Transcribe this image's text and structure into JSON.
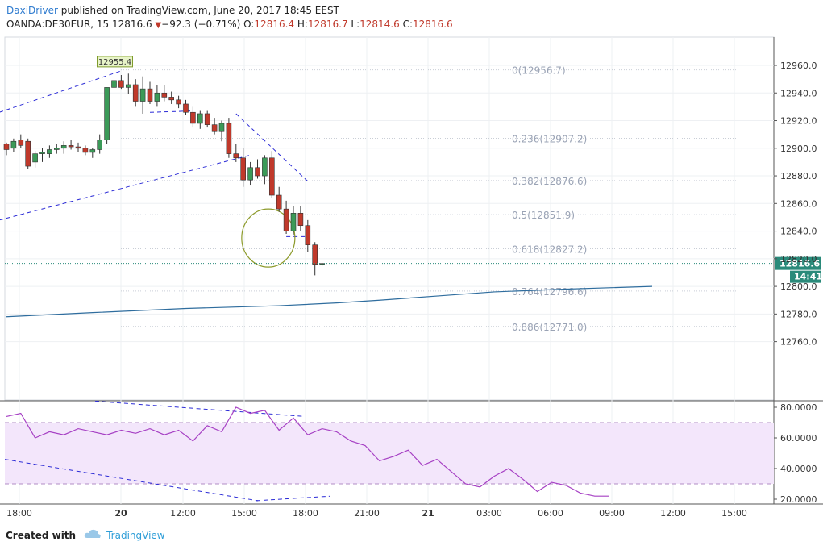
{
  "header": {
    "author": "DaxiDriver",
    "published": "published on TradingView.com, June 20, 2017 18:45 EEST",
    "symbol": "OANDA:DE30EUR, 15",
    "last": "12816.6",
    "change_arrow": "▼",
    "change": "−92.3 (−0.71%)",
    "o_label": "O:",
    "o": "12816.4",
    "h_label": "H:",
    "h": "12816.7",
    "l_label": "L:",
    "l": "12814.6",
    "c_label": "C:",
    "c": "12816.6"
  },
  "footer": {
    "created_with": "Created with",
    "brand": "TradingView",
    "icon": "tradingview-cloud-icon"
  },
  "colors": {
    "bull": "#3b9a58",
    "bear": "#c0392b",
    "ma": "#2f6d9e",
    "rsi": "#a640c4",
    "rsi_band": "#f3e6fb",
    "trend": "#2b2bd6",
    "fib": "#9aa3b5",
    "circle": "#8d9b2c"
  },
  "chart_data": [
    {
      "type": "candlestick",
      "x_ticks": [
        "18:00",
        "20",
        "12:00",
        "15:00",
        "18:00",
        "21:00",
        "21",
        "03:00",
        "06:00",
        "09:00",
        "12:00",
        "15:00"
      ],
      "y_ticks": [
        "12960.0",
        "12940.0",
        "12920.0",
        "12900.0",
        "12880.0",
        "12860.0",
        "12840.0",
        "12820.0",
        "12800.0",
        "12780.0",
        "12760.0"
      ],
      "ylim": [
        12750,
        12978
      ],
      "last_price_label": "12816.6",
      "countdown_label": "14:41",
      "high_label": "12955.4",
      "candles": [
        [
          12903,
          12904,
          12895,
          12899
        ],
        [
          12900,
          12907,
          12897,
          12905
        ],
        [
          12906,
          12910,
          12900,
          12902
        ],
        [
          12905,
          12907,
          12885,
          12887
        ],
        [
          12890,
          12898,
          12886,
          12896
        ],
        [
          12896,
          12900,
          12890,
          12897
        ],
        [
          12896,
          12902,
          12893,
          12899
        ],
        [
          12899,
          12903,
          12896,
          12900
        ],
        [
          12900,
          12905,
          12896,
          12902
        ],
        [
          12902,
          12906,
          12899,
          12901
        ],
        [
          12901,
          12904,
          12897,
          12900
        ],
        [
          12900,
          12902,
          12895,
          12897
        ],
        [
          12897,
          12900,
          12893,
          12899
        ],
        [
          12899,
          12910,
          12896,
          12906
        ],
        [
          12906,
          12944,
          12903,
          12944
        ],
        [
          12944,
          12956,
          12938,
          12949
        ],
        [
          12949,
          12953,
          12943,
          12944
        ],
        [
          12944,
          12954,
          12939,
          12946
        ],
        [
          12946,
          12950,
          12930,
          12934
        ],
        [
          12934,
          12952,
          12925,
          12943
        ],
        [
          12943,
          12948,
          12932,
          12934
        ],
        [
          12934,
          12946,
          12930,
          12940
        ],
        [
          12940,
          12946,
          12934,
          12937
        ],
        [
          12937,
          12941,
          12932,
          12935
        ],
        [
          12935,
          12938,
          12929,
          12932
        ],
        [
          12932,
          12935,
          12924,
          12926
        ],
        [
          12926,
          12930,
          12915,
          12918
        ],
        [
          12918,
          12927,
          12914,
          12925
        ],
        [
          12925,
          12927,
          12915,
          12917
        ],
        [
          12917,
          12922,
          12910,
          12912
        ],
        [
          12912,
          12920,
          12905,
          12918
        ],
        [
          12918,
          12922,
          12893,
          12896
        ],
        [
          12896,
          12903,
          12890,
          12893
        ],
        [
          12893,
          12900,
          12872,
          12877
        ],
        [
          12877,
          12890,
          12873,
          12886
        ],
        [
          12886,
          12892,
          12878,
          12880
        ],
        [
          12880,
          12895,
          12874,
          12893
        ],
        [
          12893,
          12898,
          12864,
          12866
        ],
        [
          12866,
          12872,
          12854,
          12856
        ],
        [
          12856,
          12862,
          12838,
          12840
        ],
        [
          12840,
          12858,
          12837,
          12853
        ],
        [
          12853,
          12858,
          12840,
          12844
        ],
        [
          12844,
          12848,
          12825,
          12830
        ],
        [
          12830,
          12832,
          12808,
          12816
        ],
        [
          12816,
          12817,
          12815,
          12816.6
        ]
      ],
      "moving_average": [
        [
          0,
          12778
        ],
        [
          12,
          12781
        ],
        [
          25,
          12784
        ],
        [
          38,
          12786
        ],
        [
          46,
          12788
        ],
        [
          52,
          12790
        ],
        [
          60,
          12793
        ],
        [
          68,
          12796
        ],
        [
          78,
          12798
        ],
        [
          90,
          12800
        ]
      ],
      "fibonacci": [
        {
          "label": "0(12956.7)",
          "value": 12956.7
        },
        {
          "label": "0.236(12907.2)",
          "value": 12907.2
        },
        {
          "label": "0.382(12876.6)",
          "value": 12876.6
        },
        {
          "label": "0.5(12851.9)",
          "value": 12851.9
        },
        {
          "label": "0.618(12827.2)",
          "value": 12827.2
        },
        {
          "label": "0.764(12796.6)",
          "value": 12796.6
        },
        {
          "label": "0.886(12771.0)",
          "value": 12771.0
        }
      ]
    },
    {
      "type": "line",
      "y_ticks": [
        "80.0000",
        "60.0000",
        "40.0000",
        "20.0000"
      ],
      "ylim": [
        18,
        82
      ],
      "bands": [
        30,
        70
      ],
      "rsi": [
        [
          0,
          74
        ],
        [
          2,
          76
        ],
        [
          4,
          60
        ],
        [
          6,
          64
        ],
        [
          8,
          62
        ],
        [
          10,
          66
        ],
        [
          12,
          64
        ],
        [
          14,
          62
        ],
        [
          16,
          65
        ],
        [
          18,
          63
        ],
        [
          20,
          66
        ],
        [
          22,
          62
        ],
        [
          24,
          65
        ],
        [
          26,
          58
        ],
        [
          28,
          68
        ],
        [
          30,
          64
        ],
        [
          32,
          80
        ],
        [
          34,
          76
        ],
        [
          36,
          78
        ],
        [
          38,
          65
        ],
        [
          40,
          73
        ],
        [
          42,
          62
        ],
        [
          44,
          66
        ],
        [
          46,
          64
        ],
        [
          48,
          58
        ],
        [
          50,
          55
        ],
        [
          52,
          45
        ],
        [
          54,
          48
        ],
        [
          56,
          52
        ],
        [
          58,
          42
        ],
        [
          60,
          46
        ],
        [
          62,
          38
        ],
        [
          64,
          30
        ],
        [
          66,
          28
        ],
        [
          68,
          35
        ],
        [
          70,
          40
        ],
        [
          72,
          33
        ],
        [
          74,
          25
        ],
        [
          76,
          31
        ],
        [
          78,
          29
        ],
        [
          80,
          24
        ],
        [
          82,
          22
        ],
        [
          84,
          22
        ]
      ]
    }
  ]
}
